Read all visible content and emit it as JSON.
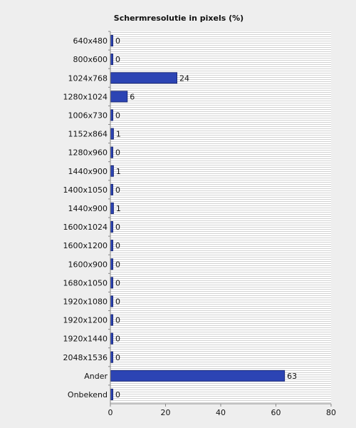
{
  "chart_data": {
    "type": "bar",
    "orientation": "horizontal",
    "title": "Schermresolutie in pixels (%)",
    "xlabel": "",
    "ylabel": "",
    "categories": [
      "640x480",
      "800x600",
      "1024x768",
      "1280x1024",
      "1006x730",
      "1152x864",
      "1280x960",
      "1440x900",
      "1400x1050",
      "1440x900",
      "1600x1024",
      "1600x1200",
      "1600x900",
      "1680x1050",
      "1920x1080",
      "1920x1200",
      "1920x1440",
      "2048x1536",
      "Ander",
      "Onbekend"
    ],
    "values": [
      0,
      0,
      24,
      6,
      0,
      1,
      0,
      1,
      0,
      1,
      0,
      0,
      0,
      0,
      0,
      0,
      0,
      0,
      63,
      0
    ],
    "xlim": [
      0,
      80
    ],
    "xticks": [
      0,
      20,
      40,
      60,
      80
    ],
    "grid": true,
    "legend": "none",
    "colors": {
      "bar": "#2c44b4",
      "bar_edge": "#1b2a78",
      "plot_bg": "#ffffff",
      "grid": "#d2d2d2",
      "page_bg": "#eeeeee",
      "axis": "#888888"
    }
  }
}
